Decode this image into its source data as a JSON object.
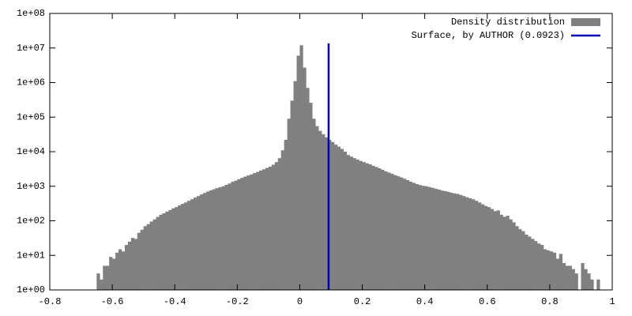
{
  "chart_data": {
    "type": "histogram",
    "log_y": true,
    "legend": "top-right",
    "xlim": [
      -0.8,
      1
    ],
    "xticks": [
      -0.8,
      -0.6,
      -0.4,
      -0.2,
      0,
      0.2,
      0.4,
      0.6,
      0.8,
      1
    ],
    "ylim": [
      1,
      100000000
    ],
    "yticks": [
      {
        "value": 1,
        "label": "1e+00"
      },
      {
        "value": 10,
        "label": "1e+01"
      },
      {
        "value": 100,
        "label": "1e+02"
      },
      {
        "value": 1000,
        "label": "1e+03"
      },
      {
        "value": 10000,
        "label": "1e+04"
      },
      {
        "value": 100000,
        "label": "1e+05"
      },
      {
        "value": 1000000,
        "label": "1e+06"
      },
      {
        "value": 10000000,
        "label": "1e+07"
      },
      {
        "value": 100000000,
        "label": "1e+08"
      }
    ],
    "bins": [
      -0.65,
      -0.64,
      -0.63,
      -0.62,
      -0.61,
      -0.6,
      -0.59,
      -0.58,
      -0.57,
      -0.56,
      -0.55,
      -0.54,
      -0.53,
      -0.52,
      -0.51,
      -0.5,
      -0.49,
      -0.48,
      -0.47,
      -0.46,
      -0.45,
      -0.44,
      -0.43,
      -0.42,
      -0.41,
      -0.4,
      -0.39,
      -0.38,
      -0.37,
      -0.36,
      -0.35,
      -0.34,
      -0.33,
      -0.32,
      -0.31,
      -0.3,
      -0.29,
      -0.28,
      -0.27,
      -0.26,
      -0.25,
      -0.24,
      -0.23,
      -0.22,
      -0.21,
      -0.2,
      -0.19,
      -0.18,
      -0.17,
      -0.16,
      -0.15,
      -0.14,
      -0.13,
      -0.12,
      -0.11,
      -0.1,
      -0.09,
      -0.08,
      -0.07,
      -0.06,
      -0.05,
      -0.04,
      -0.03,
      -0.02,
      -0.01,
      0,
      0.01,
      0.02,
      0.03,
      0.04,
      0.05,
      0.06,
      0.07,
      0.08,
      0.09,
      0.1,
      0.11,
      0.12,
      0.13,
      0.14,
      0.15,
      0.16,
      0.17,
      0.18,
      0.19,
      0.2,
      0.21,
      0.22,
      0.23,
      0.24,
      0.25,
      0.26,
      0.27,
      0.28,
      0.29,
      0.3,
      0.31,
      0.32,
      0.33,
      0.34,
      0.35,
      0.36,
      0.37,
      0.38,
      0.39,
      0.4,
      0.41,
      0.42,
      0.43,
      0.44,
      0.45,
      0.46,
      0.47,
      0.48,
      0.49,
      0.5,
      0.51,
      0.52,
      0.53,
      0.54,
      0.55,
      0.56,
      0.57,
      0.58,
      0.59,
      0.6,
      0.61,
      0.62,
      0.63,
      0.64,
      0.65,
      0.66,
      0.67,
      0.68,
      0.69,
      0.7,
      0.71,
      0.72,
      0.73,
      0.74,
      0.75,
      0.76,
      0.77,
      0.78,
      0.79,
      0.8,
      0.81,
      0.82,
      0.83,
      0.84,
      0.85,
      0.86,
      0.87,
      0.88,
      0.89,
      0.9,
      0.91,
      0.92,
      0.93,
      0.94,
      0.95,
      0.96
    ],
    "series": [
      {
        "name": "Density distribution",
        "color": "#808080",
        "values": [
          3,
          2,
          5,
          5,
          9,
          8,
          12,
          15,
          13,
          20,
          25,
          32,
          30,
          45,
          55,
          70,
          80,
          95,
          110,
          130,
          150,
          165,
          185,
          205,
          230,
          250,
          280,
          310,
          340,
          380,
          420,
          470,
          520,
          580,
          640,
          700,
          760,
          820,
          880,
          940,
          1000,
          1100,
          1200,
          1350,
          1450,
          1600,
          1750,
          1900,
          2050,
          2200,
          2400,
          2600,
          2850,
          3100,
          3400,
          3700,
          4200,
          5000,
          6500,
          11000,
          22000,
          90000,
          300000,
          1100000,
          6000000,
          12000000,
          2700000,
          700000,
          260000,
          90000,
          55000,
          40000,
          32000,
          26000,
          22000,
          19000,
          16000,
          14000,
          12000,
          10000,
          8000,
          7200,
          6500,
          5900,
          5400,
          5000,
          4600,
          4300,
          3900,
          3600,
          3300,
          3000,
          2700,
          2500,
          2300,
          2100,
          1950,
          1800,
          1650,
          1500,
          1350,
          1250,
          1150,
          1080,
          1030,
          1000,
          950,
          900,
          850,
          800,
          750,
          720,
          690,
          650,
          620,
          600,
          560,
          520,
          480,
          450,
          420,
          380,
          340,
          300,
          270,
          250,
          220,
          190,
          200,
          150,
          130,
          140,
          110,
          90,
          70,
          57,
          50,
          40,
          35,
          30,
          26,
          22,
          20,
          15,
          14,
          13,
          12,
          8,
          11,
          6,
          5,
          5,
          4,
          3,
          1,
          6,
          4,
          3,
          2,
          1,
          2
        ]
      }
    ],
    "vlines": [
      {
        "name": "Surface, by AUTHOR (0.0923)",
        "color": "#0000b0",
        "x": 0.0923,
        "ylim": [
          1,
          13500000
        ]
      }
    ]
  }
}
